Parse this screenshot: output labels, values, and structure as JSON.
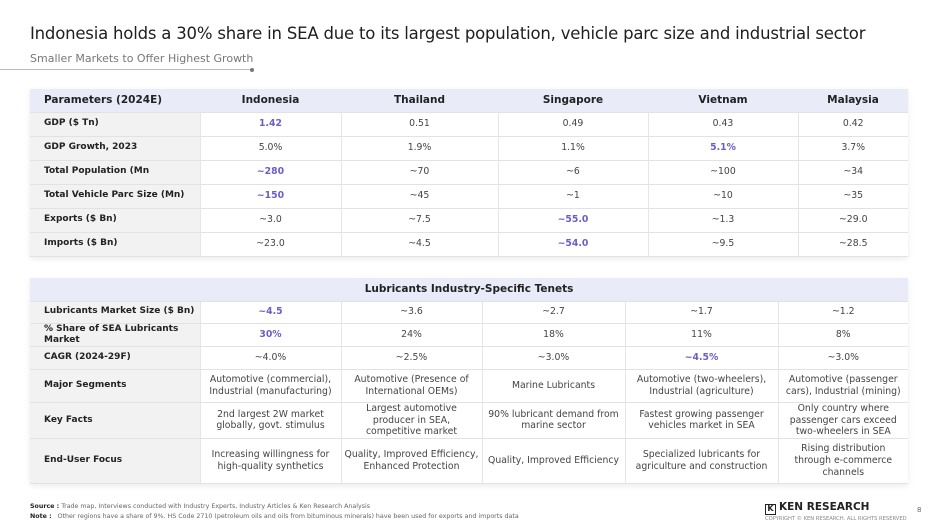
{
  "header": {
    "title": "Indonesia holds a 30% share in SEA due to its largest population, vehicle parc size and industrial sector",
    "subtitle": "Smaller Markets to Offer Highest Growth"
  },
  "colors": {
    "highlight": "#6a5fc6",
    "header_bg": "#e9ebf8",
    "label_bg": "#f2f2f2"
  },
  "table1": {
    "columns": [
      "Parameters (2024E)",
      "Indonesia",
      "Thailand",
      "Singapore",
      "Vietnam",
      "Malaysia"
    ],
    "rows": [
      {
        "label": "GDP ($ Tn)",
        "values": [
          "1.42",
          "0.51",
          "0.49",
          "0.43",
          "0.42"
        ],
        "highlight": [
          0
        ]
      },
      {
        "label": "GDP Growth, 2023",
        "values": [
          "5.0%",
          "1.9%",
          "1.1%",
          "5.1%",
          "3.7%"
        ],
        "highlight": [
          3
        ]
      },
      {
        "label": "Total Population (Mn",
        "values": [
          "~280",
          "~70",
          "~6",
          "~100",
          "~34"
        ],
        "highlight": [
          0
        ]
      },
      {
        "label": "Total Vehicle Parc Size (Mn)",
        "values": [
          "~150",
          "~45",
          "~1",
          "~10",
          "~35"
        ],
        "highlight": [
          0
        ]
      },
      {
        "label": "Exports ($ Bn)",
        "values": [
          "~3.0",
          "~7.5",
          "~55.0",
          "~1.3",
          "~29.0"
        ],
        "highlight": [
          2
        ]
      },
      {
        "label": "Imports ($ Bn)",
        "values": [
          "~23.0",
          "~4.5",
          "~54.0",
          "~9.5",
          "~28.5"
        ],
        "highlight": [
          2
        ]
      }
    ]
  },
  "table2": {
    "title": "Lubricants Industry-Specific Tenets",
    "rows": [
      {
        "label": "Lubricants Market Size ($ Bn)",
        "values": [
          "~4.5",
          "~3.6",
          "~2.7",
          "~1.7",
          "~1.2"
        ],
        "highlight": [
          0
        ]
      },
      {
        "label": "% Share of SEA Lubricants Market",
        "values": [
          "30%",
          "24%",
          "18%",
          "11%",
          "8%"
        ],
        "highlight": [
          0
        ]
      },
      {
        "label": "CAGR (2024-29F)",
        "values": [
          "~4.0%",
          "~2.5%",
          "~3.0%",
          "~4.5%",
          "~3.0%"
        ],
        "highlight": [
          3
        ]
      },
      {
        "label": "Major Segments",
        "values": [
          "Automotive (commercial), Industrial (manufacturing)",
          "Automotive (Presence of International OEMs)",
          "Marine Lubricants",
          "Automotive (two-wheelers), Industrial (agriculture)",
          "Automotive (passenger cars), Industrial (mining)"
        ],
        "highlight": []
      },
      {
        "label": "Key Facts",
        "values": [
          "2nd largest 2W market globally, govt. stimulus",
          "Largest automotive producer in SEA, competitive market",
          "90% lubricant demand from marine sector",
          "Fastest growing passenger vehicles market in SEA",
          "Only country where passenger cars exceed two-wheelers in SEA"
        ],
        "highlight": []
      },
      {
        "label": "End-User Focus",
        "values": [
          "Increasing willingness for high-quality synthetics",
          "Quality, Improved Efficiency, Enhanced Protection",
          "Quality, Improved Efficiency",
          "Specialized lubricants for agriculture and construction",
          "Rising distribution through e-commerce channels"
        ],
        "highlight": []
      }
    ]
  },
  "footer": {
    "source_label": "Source :",
    "source": "Trade map, Interviews conducted with Industry Experts, Industry Articles & Ken Research Analysis",
    "note_label": "Note :",
    "note": "Other regions have a share of 9%. HS Code 2710 (petroleum oils and oils from bituminous minerals) have been used for exports and imports data",
    "brand": "KEN RESEARCH",
    "copyright": "COPYRIGHT © KEN RESEARCH. ALL RIGHTS RESERVED",
    "page": "8"
  }
}
